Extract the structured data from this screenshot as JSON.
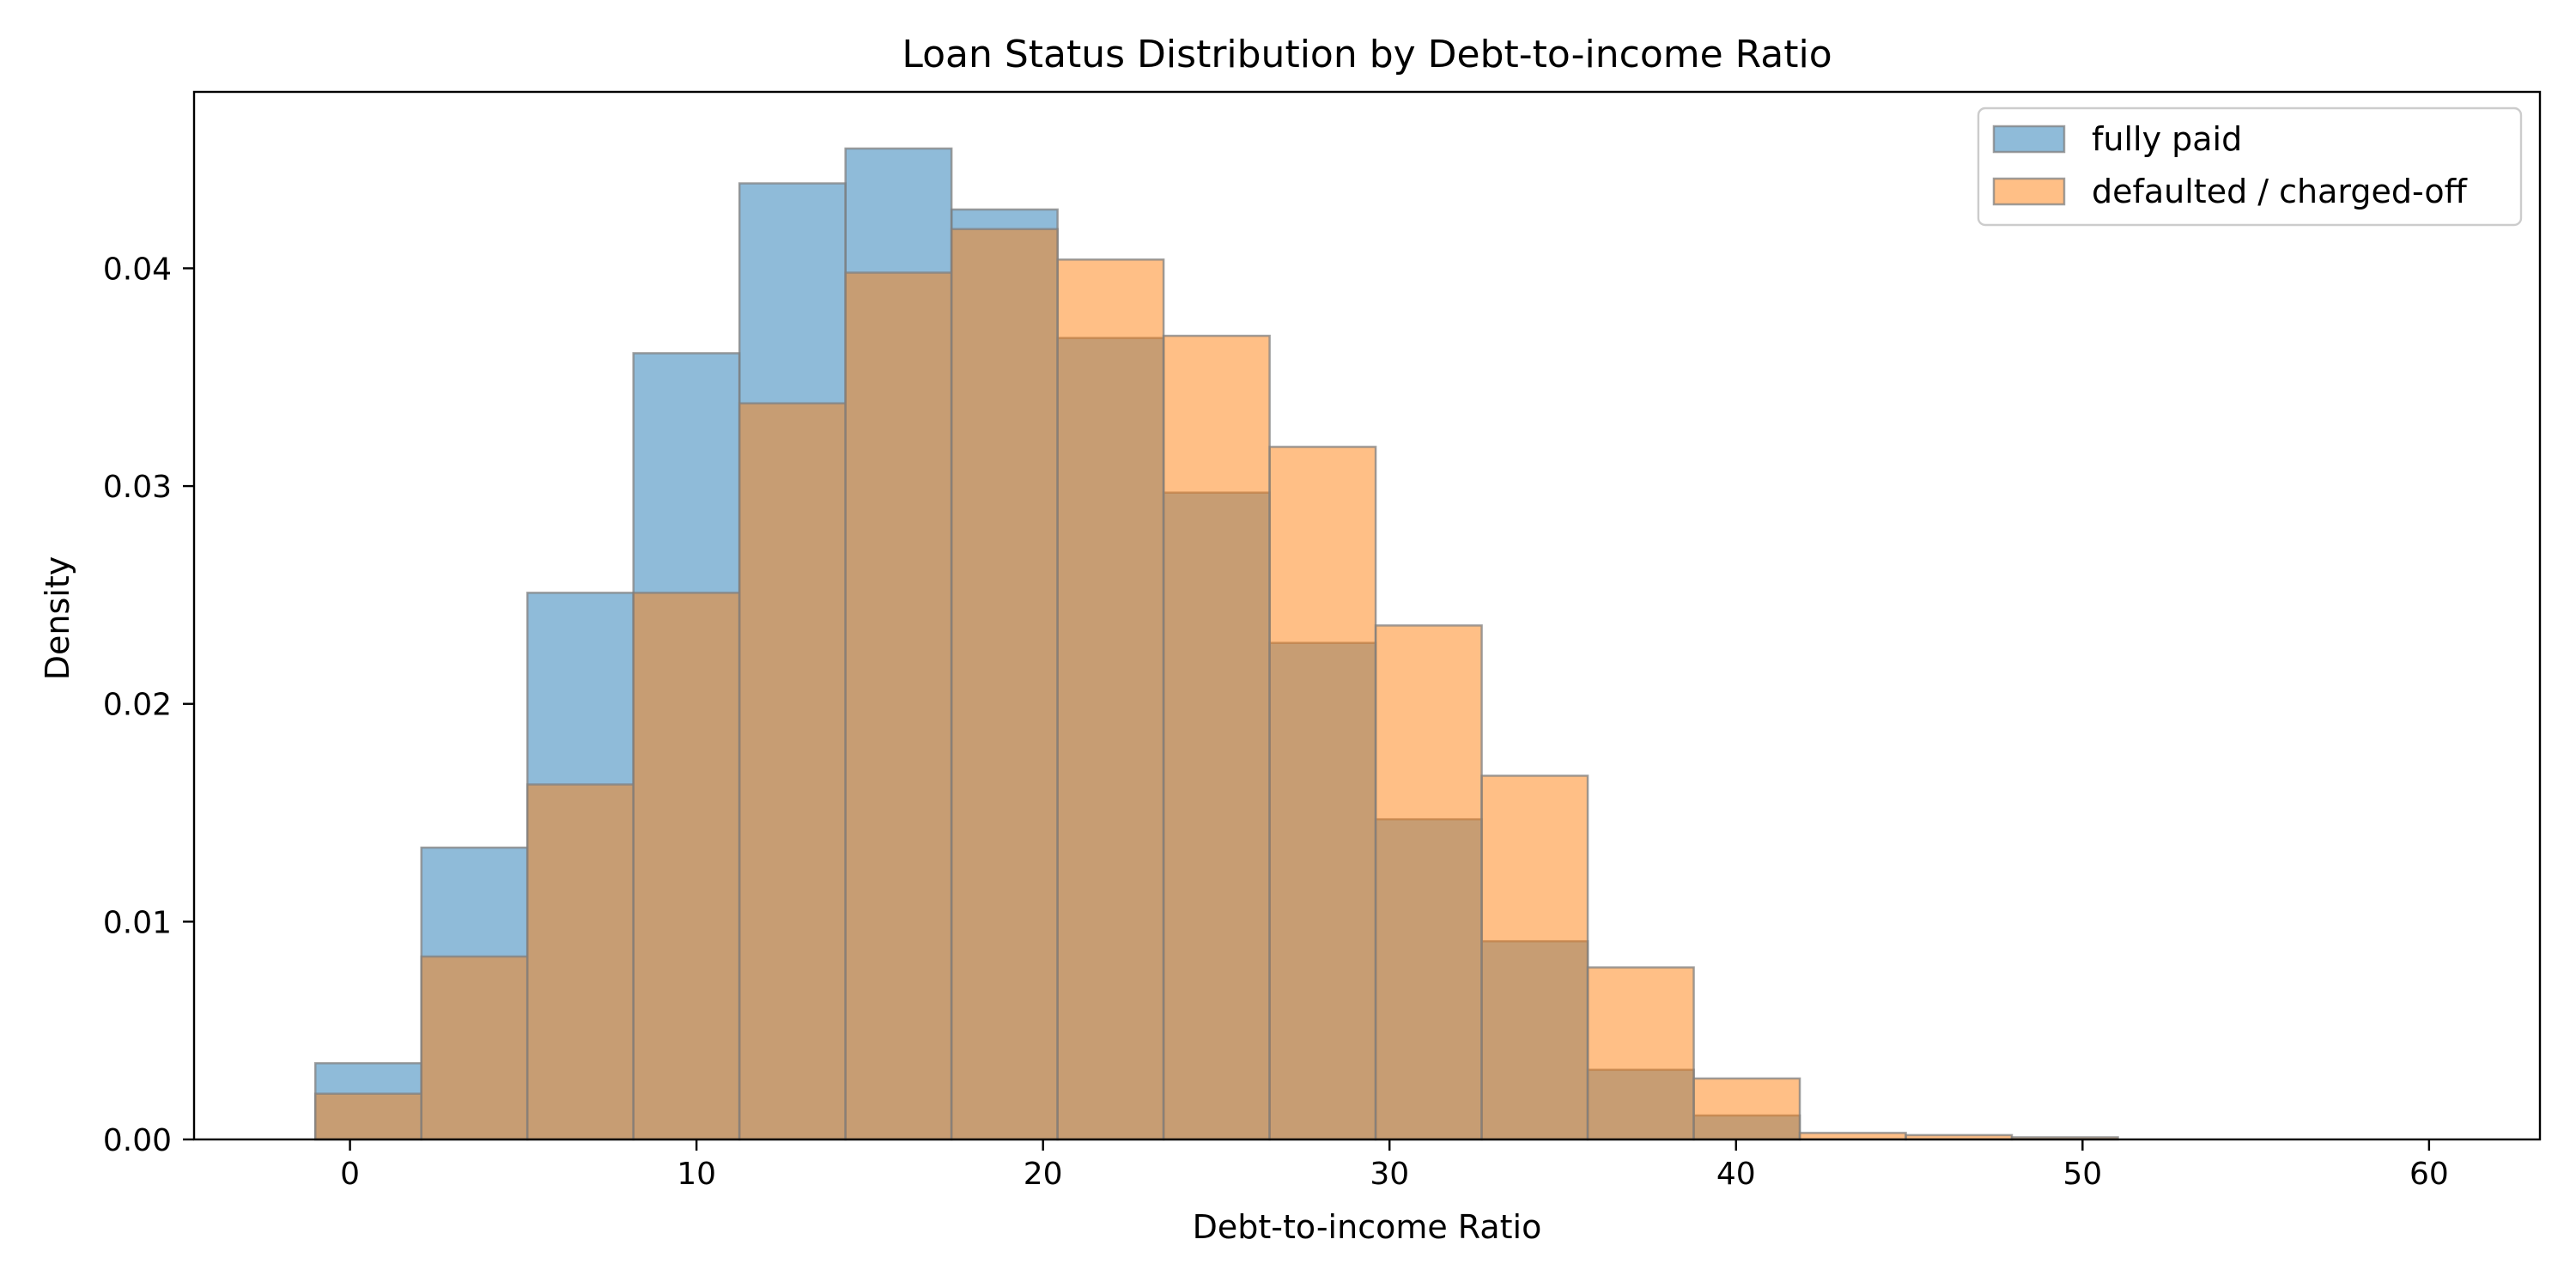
{
  "chart_data": {
    "type": "bar",
    "subtype": "histogram-overlay",
    "title": "Loan Status Distribution by Debt-to-income Ratio",
    "xlabel": "Debt-to-income Ratio",
    "ylabel": "Density",
    "xlim": [
      -4.5,
      63.2
    ],
    "ylim": [
      0,
      0.0481
    ],
    "xticks": [
      0,
      10,
      20,
      30,
      40,
      50,
      60
    ],
    "xtick_labels": [
      "0",
      "10",
      "20",
      "30",
      "40",
      "50",
      "60"
    ],
    "yticks": [
      0,
      0.01,
      0.02,
      0.03,
      0.04
    ],
    "ytick_labels": [
      "0.00",
      "0.01",
      "0.02",
      "0.03",
      "0.04"
    ],
    "grid": false,
    "legend_position": "top-right",
    "bin_edges": [
      -1.0,
      2.06,
      5.12,
      8.18,
      11.24,
      14.3,
      17.36,
      20.42,
      23.48,
      26.54,
      29.6,
      32.66,
      35.72,
      38.78,
      41.84,
      44.9,
      47.96,
      51.02,
      54.08,
      57.14,
      60.2
    ],
    "series": [
      {
        "name": "fully paid",
        "color": "#1f77b4",
        "values": [
          0.0035,
          0.0134,
          0.0251,
          0.0361,
          0.0439,
          0.0455,
          0.0427,
          0.0368,
          0.0297,
          0.0228,
          0.0147,
          0.0091,
          0.0032,
          0.0011,
          0.0,
          0.0,
          0.0,
          0.0,
          0.0,
          0.0
        ]
      },
      {
        "name": "defaulted / charged-off",
        "color": "#ff7f0e",
        "values": [
          0.0021,
          0.0084,
          0.0163,
          0.0251,
          0.0338,
          0.0398,
          0.0418,
          0.0404,
          0.0369,
          0.0318,
          0.0236,
          0.0167,
          0.0079,
          0.0028,
          0.0003,
          0.0002,
          0.0001,
          0.0,
          0.0,
          0.0
        ]
      }
    ]
  }
}
